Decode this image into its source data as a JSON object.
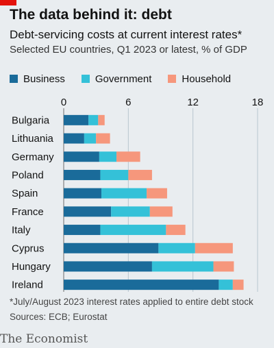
{
  "header": {
    "title": "The data behind it: debt",
    "subtitle": "Debt-servicing costs at current interest rates*",
    "description": "Selected EU countries, Q1 2023 or latest, % of GDP"
  },
  "colors": {
    "business": "#1a6b9a",
    "government": "#34c1d8",
    "household": "#f6977c",
    "brand_red": "#e3120b"
  },
  "legend": [
    {
      "label": "Business",
      "color": "#1a6b9a"
    },
    {
      "label": "Government",
      "color": "#34c1d8"
    },
    {
      "label": "Household",
      "color": "#f6977c"
    }
  ],
  "chart_data": {
    "type": "bar",
    "orientation": "horizontal",
    "stacked": true,
    "categories": [
      "Bulgaria",
      "Lithuania",
      "Germany",
      "Poland",
      "Spain",
      "France",
      "Italy",
      "Cyprus",
      "Hungary",
      "Ireland"
    ],
    "series": [
      {
        "name": "Business",
        "values": [
          2.3,
          1.9,
          3.3,
          3.4,
          3.5,
          4.4,
          3.4,
          8.8,
          8.2,
          14.4
        ]
      },
      {
        "name": "Government",
        "values": [
          0.9,
          1.1,
          1.6,
          2.6,
          4.2,
          3.6,
          6.1,
          3.4,
          5.7,
          1.3
        ]
      },
      {
        "name": "Household",
        "values": [
          0.6,
          1.3,
          2.2,
          2.2,
          1.9,
          2.1,
          1.8,
          3.5,
          1.9,
          1.0
        ]
      }
    ],
    "xlim": [
      0,
      18
    ],
    "xticks": [
      0,
      6,
      12,
      18
    ],
    "grid": true,
    "legend_position": "top"
  },
  "footer": {
    "footnote": "*July/August 2023 interest rates applied to entire debt stock",
    "sources": "Sources: ECB; Eurostat",
    "brand": "The Economist"
  }
}
